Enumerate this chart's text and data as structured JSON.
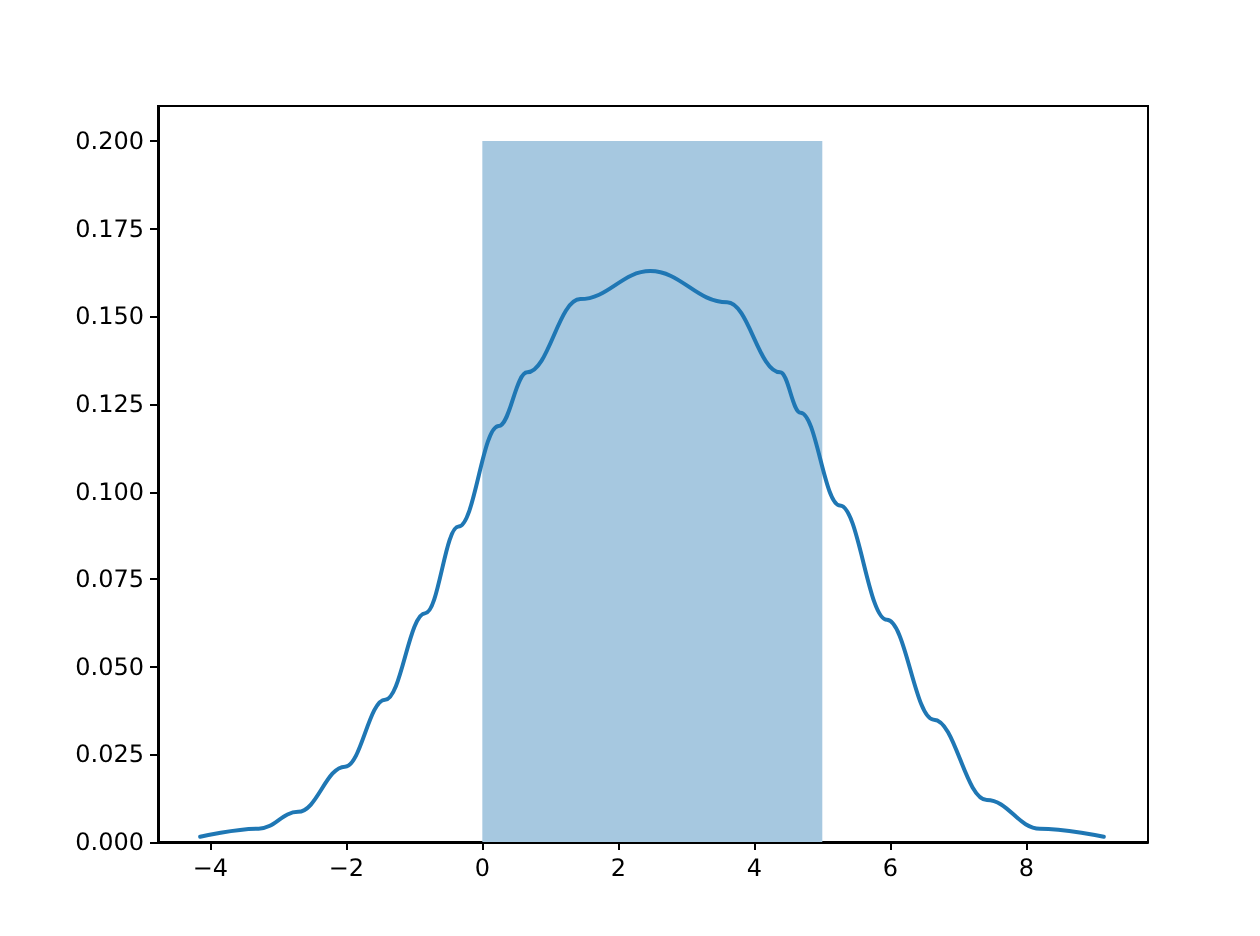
{
  "chart_data": {
    "type": "histogram",
    "grid": false,
    "marker": "none",
    "line_style": "solid",
    "xlim": [
      -4.77,
      9.79
    ],
    "xticks": [
      {
        "value": -4,
        "label": "−4"
      },
      {
        "value": -2,
        "label": "−2"
      },
      0,
      2,
      4,
      6,
      8
    ],
    "ylim": [
      0,
      0.21
    ],
    "yticks": [
      {
        "value": 0,
        "label": "0.000"
      },
      {
        "value": 0.025,
        "label": "0.025"
      },
      {
        "value": 0.05,
        "label": "0.050"
      },
      {
        "value": 0.075,
        "label": "0.075"
      },
      {
        "value": 0.1,
        "label": "0.100"
      },
      {
        "value": 0.125,
        "label": "0.125"
      },
      {
        "value": 0.15,
        "label": "0.150"
      },
      {
        "value": 0.175,
        "label": "0.175"
      },
      {
        "value": 0.2,
        "label": "0.200"
      }
    ],
    "series": [
      {
        "color": "#a6c8e0",
        "bins": [
          0,
          5
        ],
        "values": [
          0.2
        ]
      },
      {
        "type": "line",
        "color": "#1f77b4",
        "x": [
          -4.15,
          -3.29,
          -2.71,
          -2.02,
          -1.43,
          -0.84,
          -0.35,
          0.24,
          0.66,
          1.44,
          2.47,
          3.6,
          4.38,
          4.68,
          5.26,
          5.95,
          6.64,
          7.42,
          8.2,
          9.14
        ],
        "values": [
          0.0015,
          0.0038,
          0.0086,
          0.0215,
          0.0406,
          0.0653,
          0.09,
          0.1187,
          0.134,
          0.1549,
          0.1629,
          0.154,
          0.134,
          0.1225,
          0.096,
          0.0634,
          0.0349,
          0.012,
          0.0038,
          0.0015
        ]
      }
    ]
  }
}
